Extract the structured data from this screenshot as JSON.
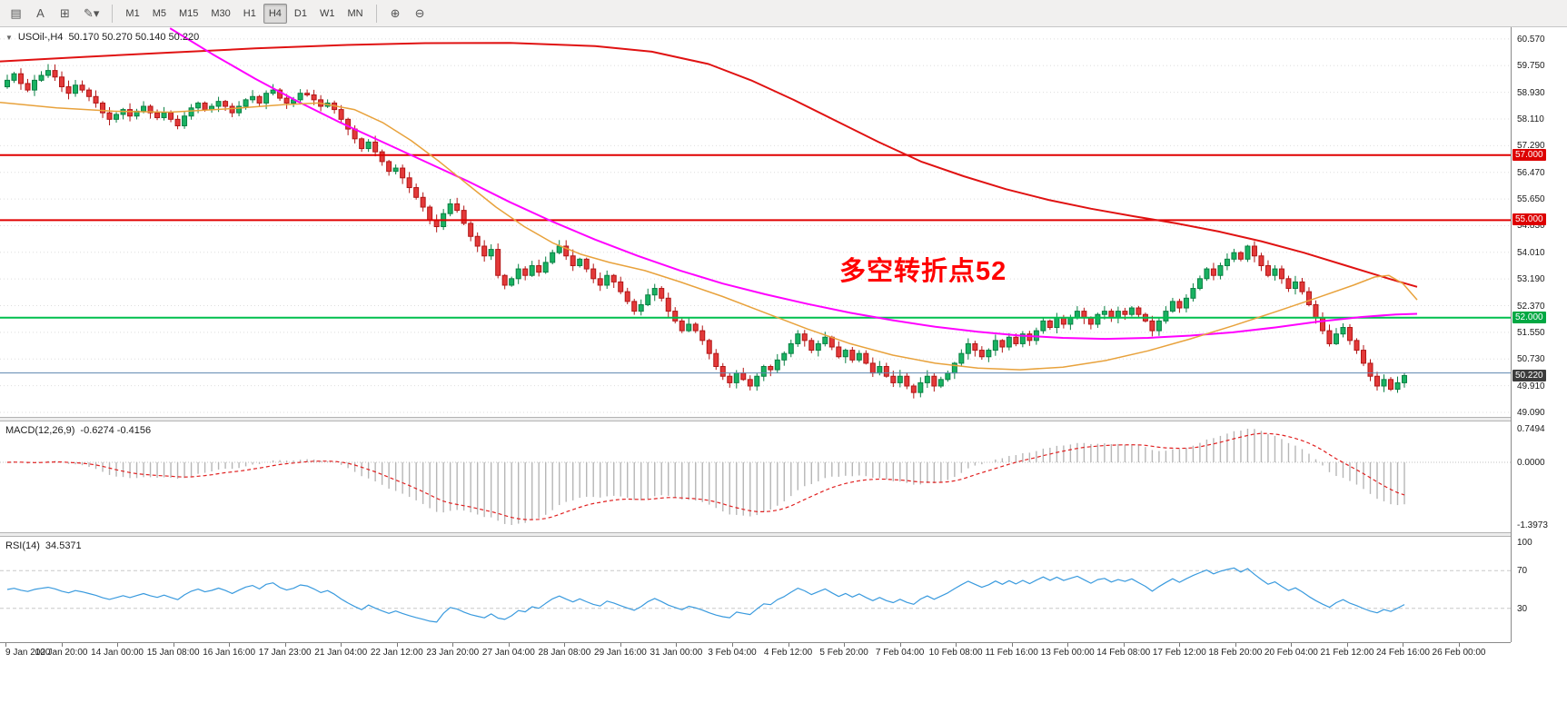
{
  "toolbar": {
    "left_icons": [
      {
        "name": "chart-bars-icon",
        "glyph": "▤"
      },
      {
        "name": "text-label-icon",
        "glyph": "A"
      },
      {
        "name": "crosshair-icon",
        "glyph": "⊞"
      },
      {
        "name": "draw-tools-icon",
        "glyph": "✎▾"
      }
    ],
    "timeframes": [
      {
        "label": "M1",
        "active": false
      },
      {
        "label": "M5",
        "active": false
      },
      {
        "label": "M15",
        "active": false
      },
      {
        "label": "M30",
        "active": false
      },
      {
        "label": "H1",
        "active": false
      },
      {
        "label": "H4",
        "active": true
      },
      {
        "label": "D1",
        "active": false
      },
      {
        "label": "W1",
        "active": false
      },
      {
        "label": "MN",
        "active": false
      }
    ],
    "right_icons": [
      {
        "name": "zoom-in-icon",
        "glyph": "⊕"
      },
      {
        "name": "zoom-out-icon",
        "glyph": "⊖"
      }
    ]
  },
  "main_chart": {
    "symbol_label": "USOil-,H4",
    "ohlc": "50.170 50.270 50.140 50.220",
    "annotation": {
      "text": "多空转折点52",
      "color": "#ff0000"
    },
    "price_axis_labels": [
      "60.570",
      "59.750",
      "58.930",
      "58.110",
      "57.290",
      "56.470",
      "55.650",
      "54.830",
      "54.010",
      "53.190",
      "52.370",
      "51.550",
      "50.730",
      "49.910",
      "49.090"
    ],
    "price_badges": [
      {
        "value": "57.000",
        "price": 57.0,
        "color": "#dd0000"
      },
      {
        "value": "55.000",
        "price": 55.0,
        "color": "#dd0000"
      },
      {
        "value": "52.000",
        "price": 52.0,
        "color": "#00a843"
      },
      {
        "value": "50.220",
        "price": 50.22,
        "color": "#3c3c3c"
      }
    ],
    "hlines": [
      {
        "price": 57.0,
        "color": "#e00000",
        "width": 2
      },
      {
        "price": 55.0,
        "color": "#e00000",
        "width": 2
      },
      {
        "price": 52.0,
        "color": "#00bf4e",
        "width": 2
      },
      {
        "price": 50.3,
        "color": "#5e87b0",
        "width": 1
      }
    ]
  },
  "chart_data": {
    "type": "candlestick+indicators",
    "symbol": "USOil-",
    "timeframe": "H4",
    "price_range": [
      49.09,
      60.57
    ],
    "candles": {
      "first_open": 59.1,
      "up_color": "#19b262",
      "up_border": "#0a8043",
      "down_color": "#e33939",
      "down_border": "#b21616",
      "closes": [
        59.3,
        59.5,
        59.2,
        59.0,
        59.3,
        59.45,
        59.6,
        59.4,
        59.1,
        58.9,
        59.15,
        59.0,
        58.8,
        58.6,
        58.3,
        58.1,
        58.25,
        58.4,
        58.2,
        58.35,
        58.5,
        58.3,
        58.15,
        58.3,
        58.1,
        57.9,
        58.2,
        58.45,
        58.6,
        58.4,
        58.5,
        58.65,
        58.5,
        58.3,
        58.5,
        58.7,
        58.8,
        58.6,
        58.9,
        59.0,
        58.75,
        58.6,
        58.7,
        58.9,
        58.85,
        58.7,
        58.5,
        58.6,
        58.4,
        58.1,
        57.8,
        57.5,
        57.2,
        57.4,
        57.1,
        56.8,
        56.5,
        56.6,
        56.3,
        56.0,
        55.7,
        55.4,
        55.0,
        54.8,
        55.2,
        55.5,
        55.3,
        54.9,
        54.5,
        54.2,
        53.9,
        54.1,
        53.3,
        53.0,
        53.2,
        53.5,
        53.3,
        53.6,
        53.4,
        53.7,
        54.0,
        54.2,
        53.9,
        53.6,
        53.8,
        53.5,
        53.2,
        53.0,
        53.3,
        53.1,
        52.8,
        52.5,
        52.2,
        52.4,
        52.7,
        52.9,
        52.6,
        52.2,
        51.9,
        51.6,
        51.8,
        51.6,
        51.3,
        50.9,
        50.5,
        50.2,
        50.0,
        50.3,
        50.1,
        49.9,
        50.2,
        50.5,
        50.4,
        50.7,
        50.9,
        51.2,
        51.5,
        51.3,
        51.0,
        51.2,
        51.4,
        51.1,
        50.8,
        51.0,
        50.7,
        50.9,
        50.6,
        50.3,
        50.5,
        50.2,
        50.0,
        50.2,
        49.9,
        49.7,
        50.0,
        50.2,
        49.9,
        50.1,
        50.3,
        50.6,
        50.9,
        51.2,
        51.0,
        50.8,
        51.0,
        51.3,
        51.1,
        51.4,
        51.2,
        51.5,
        51.3,
        51.6,
        51.9,
        51.7,
        52.0,
        51.8,
        52.0,
        52.2,
        52.0,
        51.8,
        52.1,
        52.2,
        52.0,
        52.2,
        52.1,
        52.3,
        52.1,
        51.9,
        51.6,
        51.9,
        52.2,
        52.5,
        52.3,
        52.6,
        52.9,
        53.2,
        53.5,
        53.3,
        53.6,
        53.8,
        54.0,
        53.8,
        54.2,
        53.9,
        53.6,
        53.3,
        53.5,
        53.2,
        52.9,
        53.1,
        52.8,
        52.4,
        52.0,
        51.6,
        51.2,
        51.5,
        51.7,
        51.3,
        51.0,
        50.6,
        50.2,
        49.9,
        50.1,
        49.8,
        50.0,
        50.22
      ]
    },
    "moving_averages": [
      {
        "name": "ma-red",
        "color": "#e01212",
        "width": 2,
        "points": [
          [
            0.0,
            59.88
          ],
          [
            0.06,
            60.02
          ],
          [
            0.12,
            60.15
          ],
          [
            0.18,
            60.28
          ],
          [
            0.24,
            60.38
          ],
          [
            0.3,
            60.44
          ],
          [
            0.36,
            60.45
          ],
          [
            0.42,
            60.35
          ],
          [
            0.46,
            60.18
          ],
          [
            0.5,
            59.8
          ],
          [
            0.53,
            59.3
          ],
          [
            0.56,
            58.7
          ],
          [
            0.59,
            58.05
          ],
          [
            0.62,
            57.4
          ],
          [
            0.65,
            56.8
          ],
          [
            0.68,
            56.35
          ],
          [
            0.71,
            55.95
          ],
          [
            0.74,
            55.62
          ],
          [
            0.77,
            55.35
          ],
          [
            0.8,
            55.12
          ],
          [
            0.83,
            54.9
          ],
          [
            0.86,
            54.65
          ],
          [
            0.89,
            54.35
          ],
          [
            0.92,
            54.0
          ],
          [
            0.95,
            53.6
          ],
          [
            0.98,
            53.2
          ],
          [
            1.0,
            52.95
          ]
        ]
      },
      {
        "name": "ma-magenta",
        "color": "#ff00ff",
        "width": 2,
        "points": [
          [
            0.12,
            60.9
          ],
          [
            0.15,
            60.1
          ],
          [
            0.18,
            59.35
          ],
          [
            0.21,
            58.65
          ],
          [
            0.24,
            58.0
          ],
          [
            0.27,
            57.4
          ],
          [
            0.3,
            56.8
          ],
          [
            0.33,
            56.2
          ],
          [
            0.36,
            55.55
          ],
          [
            0.39,
            54.95
          ],
          [
            0.42,
            54.4
          ],
          [
            0.45,
            53.9
          ],
          [
            0.48,
            53.45
          ],
          [
            0.51,
            53.05
          ],
          [
            0.54,
            52.72
          ],
          [
            0.57,
            52.42
          ],
          [
            0.6,
            52.15
          ],
          [
            0.63,
            51.92
          ],
          [
            0.66,
            51.72
          ],
          [
            0.69,
            51.57
          ],
          [
            0.72,
            51.45
          ],
          [
            0.75,
            51.38
          ],
          [
            0.78,
            51.35
          ],
          [
            0.81,
            51.38
          ],
          [
            0.84,
            51.45
          ],
          [
            0.87,
            51.55
          ],
          [
            0.9,
            51.7
          ],
          [
            0.93,
            51.88
          ],
          [
            0.96,
            52.02
          ],
          [
            0.985,
            52.1
          ],
          [
            1.0,
            52.12
          ]
        ]
      },
      {
        "name": "ma-orange",
        "color": "#e8a23c",
        "width": 1.5,
        "points": [
          [
            0.0,
            58.62
          ],
          [
            0.04,
            58.45
          ],
          [
            0.08,
            58.35
          ],
          [
            0.12,
            58.32
          ],
          [
            0.16,
            58.42
          ],
          [
            0.2,
            58.55
          ],
          [
            0.225,
            58.6
          ],
          [
            0.25,
            58.4
          ],
          [
            0.27,
            58.0
          ],
          [
            0.29,
            57.45
          ],
          [
            0.31,
            56.8
          ],
          [
            0.33,
            56.1
          ],
          [
            0.35,
            55.4
          ],
          [
            0.37,
            54.8
          ],
          [
            0.39,
            54.3
          ],
          [
            0.41,
            53.95
          ],
          [
            0.43,
            53.7
          ],
          [
            0.455,
            53.45
          ],
          [
            0.48,
            53.1
          ],
          [
            0.51,
            52.65
          ],
          [
            0.54,
            52.15
          ],
          [
            0.57,
            51.65
          ],
          [
            0.6,
            51.2
          ],
          [
            0.63,
            50.85
          ],
          [
            0.66,
            50.6
          ],
          [
            0.69,
            50.45
          ],
          [
            0.72,
            50.4
          ],
          [
            0.75,
            50.48
          ],
          [
            0.78,
            50.68
          ],
          [
            0.81,
            50.98
          ],
          [
            0.84,
            51.35
          ],
          [
            0.87,
            51.75
          ],
          [
            0.9,
            52.18
          ],
          [
            0.93,
            52.62
          ],
          [
            0.955,
            53.0
          ],
          [
            0.97,
            53.25
          ],
          [
            0.98,
            53.3
          ],
          [
            0.99,
            53.05
          ],
          [
            1.0,
            52.55
          ]
        ]
      }
    ],
    "macd": {
      "label": "MACD(12,26,9)",
      "values_text": "-0.6274 -0.4156",
      "fast": 12,
      "slow": 26,
      "signal": 9,
      "axis_labels": [
        "0.7494",
        "0.0000",
        "-1.3973"
      ],
      "max": 0.7494,
      "min": -1.3973,
      "histogram_color": "#b6b6b6",
      "signal_color": "#e02020"
    },
    "rsi": {
      "label": "RSI(14)",
      "value_text": "34.5371",
      "period": 14,
      "levels": [
        70,
        30
      ],
      "axis_labels": [
        "100",
        "70",
        "30"
      ],
      "line_color": "#399ade"
    },
    "time_labels": [
      "9 Jan 2020",
      "10 Jan 20:00",
      "14 Jan 00:00",
      "15 Jan 08:00",
      "16 Jan 16:00",
      "17 Jan 23:00",
      "21 Jan 04:00",
      "22 Jan 12:00",
      "23 Jan 20:00",
      "27 Jan 04:00",
      "28 Jan 08:00",
      "29 Jan 16:00",
      "31 Jan 00:00",
      "3 Feb 04:00",
      "4 Feb 12:00",
      "5 Feb 20:00",
      "7 Feb 04:00",
      "10 Feb 08:00",
      "11 Feb 16:00",
      "13 Feb 00:00",
      "14 Feb 08:00",
      "17 Feb 12:00",
      "18 Feb 20:00",
      "20 Feb 04:00",
      "21 Feb 12:00",
      "24 Feb 16:00",
      "26 Feb 00:00"
    ]
  }
}
